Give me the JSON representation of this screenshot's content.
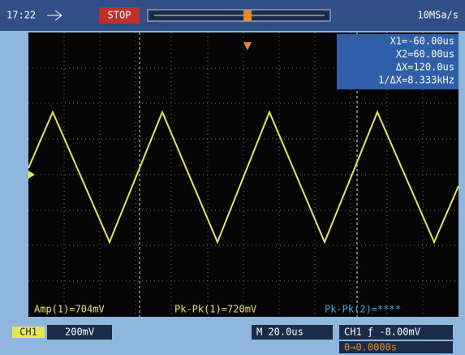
{
  "status_bar": {
    "time": "17:22",
    "run_state": "STOP",
    "sample_rate": "10MSa/s"
  },
  "cursor_box": {
    "lines": [
      "X1=-60.00us",
      "X2=60.00us",
      "ΔX=120.0us",
      "1/ΔX=8.333kHz"
    ]
  },
  "measurements": [
    "Amp(1)=704mV",
    "Pk-Pk(1)=720mV",
    "Pk-Pk(2)=****"
  ],
  "bottom_bar": {
    "channel": "CH1",
    "volts_per_div": "200mV",
    "time_base": "M 20.0us",
    "trigger": "CH1 ƒ -8.00mV",
    "trigger_offset": "0→0.0000s"
  }
}
